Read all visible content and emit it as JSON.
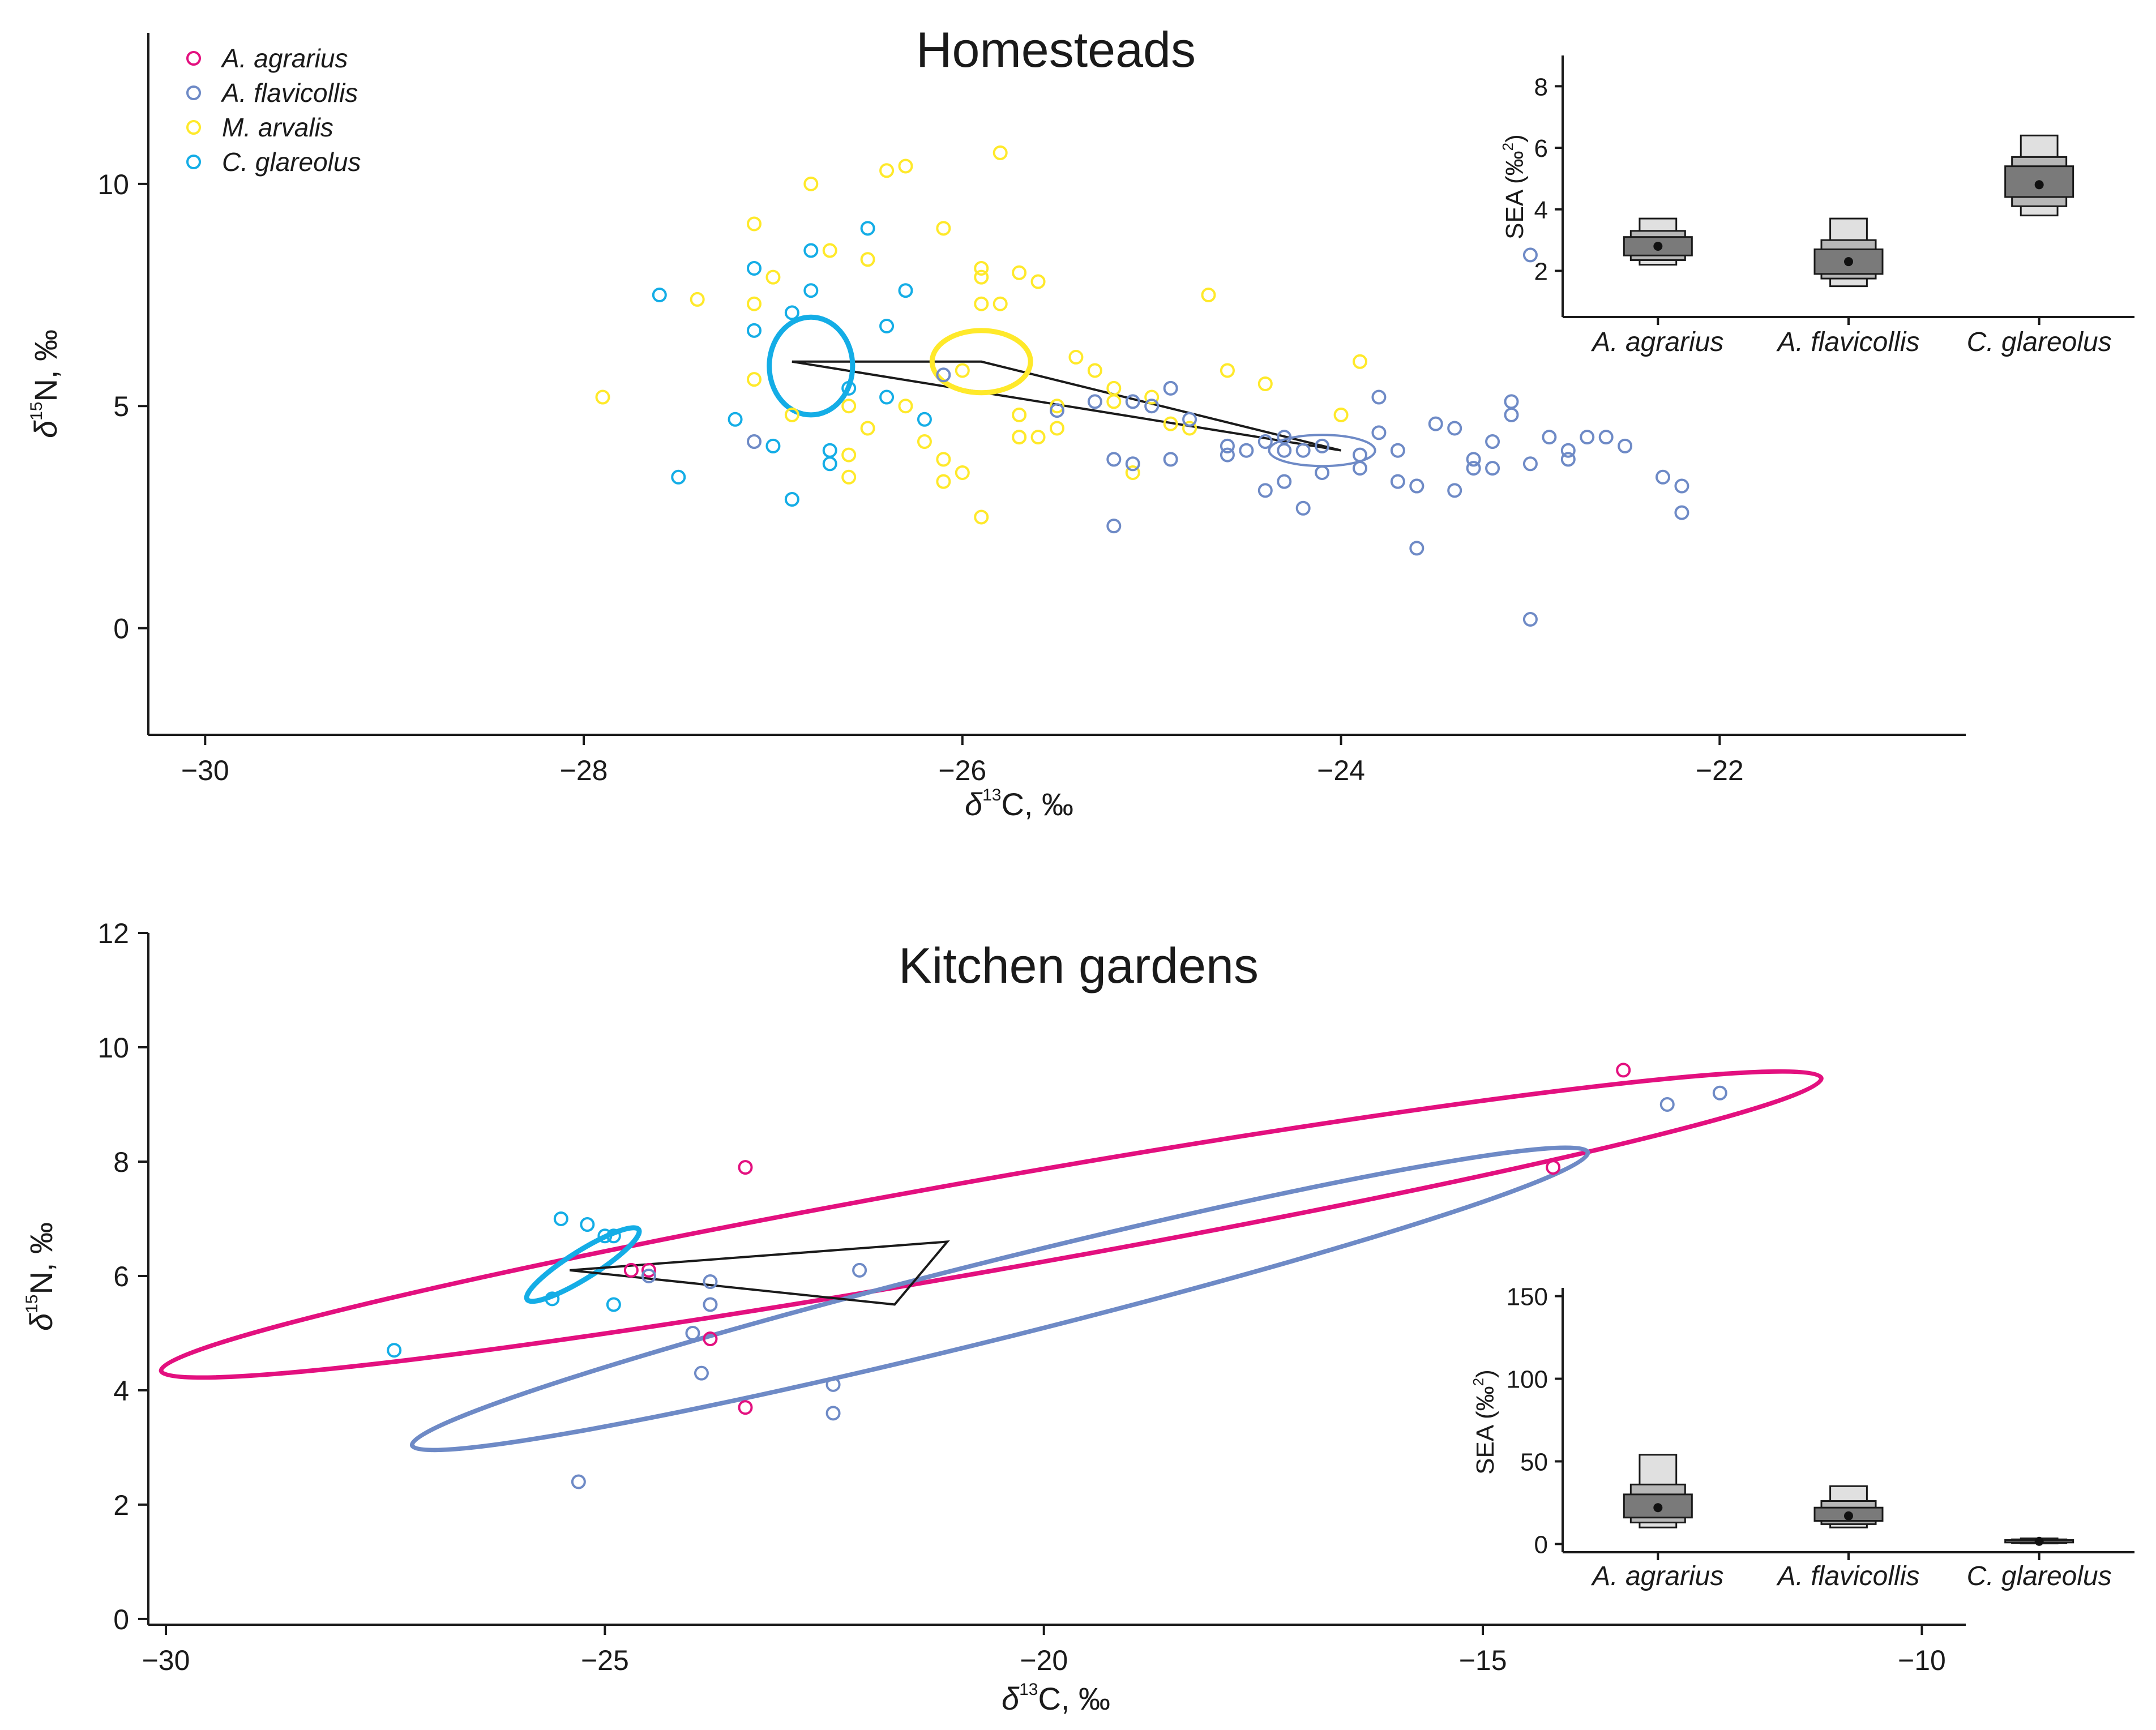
{
  "colors": {
    "A. agrarius": "#e3107f",
    "A. flavicollis": "#6e8ac6",
    "M. arvalis": "#ffe92a",
    "C. glareolus": "#14ade6"
  },
  "legend": [
    "A. agrarius",
    "A. flavicollis",
    "M. arvalis",
    "C. glareolus"
  ],
  "axis_text": {
    "delta": "δ",
    "n_sup": "15",
    "n_rest": "N,  ‰",
    "c_sup": "13",
    "c_rest": "C,  ‰",
    "sea_pre": "SEA (‰",
    "sea_sup": "2",
    "sea_post": ")"
  },
  "chart_data": [
    {
      "id": "homesteads",
      "type": "scatter",
      "title": "Homesteads",
      "xlabel": "δ13C, ‰",
      "ylabel": "δ15N, ‰",
      "xlim": [
        -30.3,
        -20.7
      ],
      "ylim": [
        -2.4,
        13.4
      ],
      "xticks": [
        -30,
        -28,
        -26,
        -24,
        -22
      ],
      "yticks": [
        0,
        5,
        10
      ],
      "series": [
        {
          "name": "M. arvalis",
          "points": [
            [
              -27.9,
              5.2
            ],
            [
              -27.4,
              7.4
            ],
            [
              -27.1,
              9.1
            ],
            [
              -27.0,
              7.9
            ],
            [
              -27.1,
              7.3
            ],
            [
              -27.1,
              5.6
            ],
            [
              -26.9,
              4.8
            ],
            [
              -26.8,
              10.0
            ],
            [
              -26.7,
              8.5
            ],
            [
              -26.6,
              5.0
            ],
            [
              -26.5,
              8.3
            ],
            [
              -26.5,
              4.5
            ],
            [
              -26.6,
              3.9
            ],
            [
              -26.6,
              3.4
            ],
            [
              -26.4,
              10.3
            ],
            [
              -26.3,
              10.4
            ],
            [
              -26.3,
              5.0
            ],
            [
              -26.2,
              4.2
            ],
            [
              -26.1,
              3.8
            ],
            [
              -26.0,
              3.5
            ],
            [
              -26.1,
              3.3
            ],
            [
              -26.1,
              9.0
            ],
            [
              -26.0,
              5.8
            ],
            [
              -25.9,
              7.3
            ],
            [
              -25.9,
              7.9
            ],
            [
              -25.9,
              8.1
            ],
            [
              -25.9,
              2.5
            ],
            [
              -25.8,
              10.7
            ],
            [
              -25.8,
              7.3
            ],
            [
              -25.7,
              8.0
            ],
            [
              -25.7,
              4.8
            ],
            [
              -25.7,
              4.3
            ],
            [
              -25.7,
              4.3
            ],
            [
              -25.6,
              7.8
            ],
            [
              -25.6,
              4.3
            ],
            [
              -25.5,
              5.0
            ],
            [
              -25.5,
              4.5
            ],
            [
              -25.4,
              6.1
            ],
            [
              -25.3,
              5.8
            ],
            [
              -25.2,
              5.4
            ],
            [
              -25.2,
              5.1
            ],
            [
              -25.1,
              3.5
            ],
            [
              -25.0,
              5.2
            ],
            [
              -24.9,
              4.6
            ],
            [
              -24.8,
              4.5
            ],
            [
              -24.7,
              7.5
            ],
            [
              -24.6,
              5.8
            ],
            [
              -24.4,
              5.5
            ],
            [
              -24.0,
              4.8
            ],
            [
              -23.9,
              6.0
            ]
          ]
        },
        {
          "name": "C. glareolus",
          "points": [
            [
              -27.5,
              3.4
            ],
            [
              -27.6,
              7.5
            ],
            [
              -27.2,
              4.7
            ],
            [
              -27.1,
              8.1
            ],
            [
              -27.1,
              6.7
            ],
            [
              -27.0,
              4.1
            ],
            [
              -26.9,
              2.9
            ],
            [
              -26.9,
              7.1
            ],
            [
              -26.8,
              8.5
            ],
            [
              -26.8,
              7.6
            ],
            [
              -26.7,
              3.7
            ],
            [
              -26.7,
              4.0
            ],
            [
              -26.6,
              5.4
            ],
            [
              -26.5,
              9.0
            ],
            [
              -26.4,
              6.8
            ],
            [
              -26.4,
              5.2
            ],
            [
              -26.3,
              7.6
            ],
            [
              -26.2,
              4.7
            ]
          ]
        },
        {
          "name": "A. flavicollis",
          "points": [
            [
              -27.1,
              4.2
            ],
            [
              -26.1,
              5.7
            ],
            [
              -25.5,
              4.9
            ],
            [
              -25.3,
              5.1
            ],
            [
              -25.2,
              2.3
            ],
            [
              -25.2,
              3.8
            ],
            [
              -25.1,
              3.7
            ],
            [
              -25.1,
              5.1
            ],
            [
              -25.0,
              5.0
            ],
            [
              -24.9,
              3.8
            ],
            [
              -24.9,
              5.4
            ],
            [
              -24.8,
              4.7
            ],
            [
              -24.6,
              4.1
            ],
            [
              -24.6,
              3.9
            ],
            [
              -24.5,
              4.0
            ],
            [
              -24.4,
              3.1
            ],
            [
              -24.4,
              4.2
            ],
            [
              -24.3,
              4.3
            ],
            [
              -24.3,
              3.3
            ],
            [
              -24.3,
              4.0
            ],
            [
              -24.2,
              4.0
            ],
            [
              -24.2,
              2.7
            ],
            [
              -24.1,
              4.1
            ],
            [
              -24.1,
              3.5
            ],
            [
              -23.9,
              3.6
            ],
            [
              -23.9,
              3.9
            ],
            [
              -23.8,
              4.4
            ],
            [
              -23.8,
              5.2
            ],
            [
              -23.7,
              3.3
            ],
            [
              -23.7,
              4.0
            ],
            [
              -23.6,
              3.2
            ],
            [
              -23.6,
              3.2
            ],
            [
              -23.6,
              1.8
            ],
            [
              -23.5,
              4.6
            ],
            [
              -23.4,
              4.5
            ],
            [
              -23.4,
              3.1
            ],
            [
              -23.3,
              3.8
            ],
            [
              -23.3,
              3.6
            ],
            [
              -23.2,
              3.6
            ],
            [
              -23.2,
              4.2
            ],
            [
              -23.1,
              5.1
            ],
            [
              -23.1,
              4.8
            ],
            [
              -23.0,
              3.7
            ],
            [
              -23.0,
              8.4
            ],
            [
              -23.0,
              0.2
            ],
            [
              -22.9,
              4.3
            ],
            [
              -22.8,
              4.0
            ],
            [
              -22.8,
              3.8
            ],
            [
              -22.7,
              4.3
            ],
            [
              -22.6,
              4.3
            ],
            [
              -22.5,
              4.1
            ],
            [
              -22.3,
              3.4
            ],
            [
              -22.2,
              3.2
            ],
            [
              -22.2,
              2.6
            ]
          ]
        }
      ],
      "ellipses": [
        {
          "series": "C. glareolus",
          "cx": -26.8,
          "cy": 5.9,
          "rx": 0.22,
          "ry": 1.1,
          "angle": 0,
          "width": 9
        },
        {
          "series": "M. arvalis",
          "cx": -25.9,
          "cy": 6.0,
          "rx": 0.26,
          "ry": 0.7,
          "angle": 0,
          "width": 9
        },
        {
          "series": "A. flavicollis",
          "cx": -24.1,
          "cy": 4.0,
          "rx": 0.28,
          "ry": 0.35,
          "angle": 0,
          "width": 4
        }
      ],
      "hull": [
        [
          -26.9,
          6.0
        ],
        [
          -25.9,
          6.0
        ],
        [
          -24.0,
          4.0
        ]
      ],
      "inset": {
        "ylabel": "SEA (‰²)",
        "yticks": [
          2,
          4,
          6,
          8
        ],
        "ylim": [
          0.5,
          9
        ],
        "categories": [
          "A. agrarius",
          "A. flavicollis",
          "C. glareolus"
        ],
        "boxes": [
          {
            "category": "A. agrarius",
            "mode": 2.8,
            "ci50": [
              2.5,
              3.1
            ],
            "ci75": [
              2.35,
              3.3
            ],
            "ci95": [
              2.2,
              3.7
            ]
          },
          {
            "category": "A. flavicollis",
            "mode": 2.3,
            "ci50": [
              1.9,
              2.7
            ],
            "ci75": [
              1.75,
              3.0
            ],
            "ci95": [
              1.5,
              3.7
            ]
          },
          {
            "category": "C. glareolus",
            "mode": 4.8,
            "ci50": [
              4.4,
              5.4
            ],
            "ci75": [
              4.1,
              5.7
            ],
            "ci95": [
              3.8,
              6.4
            ]
          }
        ]
      }
    },
    {
      "id": "kitchen-gardens",
      "type": "scatter",
      "title": "Kitchen gardens",
      "xlabel": "δ13C, ‰",
      "ylabel": "δ15N, ‰",
      "xlim": [
        -30.2,
        -9.5
      ],
      "ylim": [
        -0.1,
        12.0
      ],
      "xticks": [
        -30,
        -25,
        -20,
        -15,
        -10
      ],
      "yticks": [
        0,
        2,
        4,
        6,
        8,
        10,
        12
      ],
      "series": [
        {
          "name": "A. agrarius",
          "points": [
            [
              -24.7,
              6.1
            ],
            [
              -24.5,
              6.1
            ],
            [
              -23.4,
              7.9
            ],
            [
              -23.8,
              4.9
            ],
            [
              -23.4,
              3.7
            ],
            [
              -14.2,
              7.9
            ],
            [
              -13.4,
              9.6
            ]
          ]
        },
        {
          "name": "A. flavicollis",
          "points": [
            [
              -25.3,
              2.4
            ],
            [
              -24.5,
              6.0
            ],
            [
              -24.0,
              5.0
            ],
            [
              -23.8,
              5.9
            ],
            [
              -23.8,
              5.5
            ],
            [
              -23.9,
              4.3
            ],
            [
              -22.4,
              3.6
            ],
            [
              -22.4,
              4.1
            ],
            [
              -22.1,
              6.1
            ],
            [
              -12.9,
              9.0
            ],
            [
              -12.3,
              9.2
            ]
          ]
        },
        {
          "name": "C. glareolus",
          "points": [
            [
              -27.4,
              4.7
            ],
            [
              -25.6,
              5.6
            ],
            [
              -25.5,
              7.0
            ],
            [
              -25.2,
              6.9
            ],
            [
              -25.0,
              6.7
            ],
            [
              -24.9,
              6.7
            ],
            [
              -24.9,
              5.5
            ]
          ]
        }
      ],
      "ellipses": [
        {
          "series": "A. agrarius",
          "cx": -20.6,
          "cy": 6.9,
          "rx": 9.6,
          "ry": 0.8,
          "angle": 10,
          "width": 8
        },
        {
          "series": "A. flavicollis",
          "cx": -20.5,
          "cy": 5.6,
          "rx": 6.9,
          "ry": 0.68,
          "angle": 14,
          "width": 8
        },
        {
          "series": "C. glareolus",
          "cx": -25.25,
          "cy": 6.2,
          "rx": 0.75,
          "ry": 0.24,
          "angle": 32,
          "width": 9
        }
      ],
      "hull": [
        [
          -25.4,
          6.1
        ],
        [
          -21.1,
          6.6
        ],
        [
          -21.7,
          5.5
        ]
      ],
      "inset": {
        "ylabel": "SEA (‰²)",
        "yticks": [
          0,
          50,
          100,
          150
        ],
        "ylim": [
          -5,
          155
        ],
        "categories": [
          "A. agrarius",
          "A. flavicollis",
          "C. glareolus"
        ],
        "boxes": [
          {
            "category": "A. agrarius",
            "mode": 22,
            "ci50": [
              16,
              30
            ],
            "ci75": [
              13,
              36
            ],
            "ci95": [
              10,
              54
            ]
          },
          {
            "category": "A. flavicollis",
            "mode": 17,
            "ci50": [
              14,
              22
            ],
            "ci75": [
              12,
              26
            ],
            "ci95": [
              10,
              35
            ]
          },
          {
            "category": "C. glareolus",
            "mode": 1.6,
            "ci50": [
              0.9,
              2.4
            ],
            "ci75": [
              0.6,
              2.8
            ],
            "ci95": [
              0.3,
              3.4
            ]
          }
        ]
      }
    }
  ]
}
